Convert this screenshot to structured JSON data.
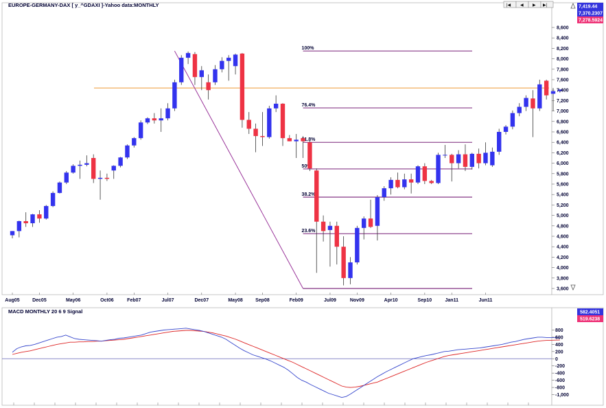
{
  "colors": {
    "up": "#3333ee",
    "down": "#ee3344",
    "wick": "#333333",
    "fib_line": "#660066",
    "horizontal_line": "#ee9933",
    "trend_line": "#993399",
    "macd_line": "#3344cc",
    "signal_line": "#dd2222",
    "zero_line": "#6666bb",
    "badge_blue": "#3333dd",
    "badge_pink": "#ee3377"
  },
  "nav_icons": [
    "first-icon",
    "previous-icon",
    "next-icon",
    "last-icon"
  ],
  "chart_data": [
    {
      "type": "candlestick",
      "title": "EUROPE-GERMANY-DAX [ y_^GDAXI ]-Yahoo data:MONTHLY",
      "period": "monthly",
      "ylim": [
        3600,
        8600
      ],
      "y_ticks": [
        3600,
        3800,
        4000,
        4200,
        4400,
        4600,
        4800,
        5000,
        5200,
        5400,
        5600,
        5800,
        6000,
        6200,
        6400,
        6600,
        6800,
        7000,
        7200,
        7400,
        7600,
        7800,
        8000,
        8200,
        8400,
        8600
      ],
      "x_tick_labels": [
        "Aug05",
        "Dec05",
        "May06",
        "Oct06",
        "Feb07",
        "Jul07",
        "Dec07",
        "May08",
        "Sep08",
        "Feb09",
        "Jul09",
        "Nov09",
        "Apr10",
        "Sep10",
        "Jan11",
        "Jun11"
      ],
      "x_tick_index": [
        0,
        4,
        9,
        14,
        18,
        23,
        28,
        33,
        37,
        42,
        47,
        51,
        56,
        61,
        65,
        70
      ],
      "value_labels": [
        "7,419.44",
        "7,370.2307",
        "7,278.5924"
      ],
      "candles": [
        {
          "date": "Jul05",
          "o": 4620,
          "h": 4700,
          "l": 4560,
          "c": 4700
        },
        {
          "date": "Aug05",
          "o": 4700,
          "h": 4900,
          "l": 4580,
          "c": 4890
        },
        {
          "date": "Sep05",
          "o": 4890,
          "h": 5060,
          "l": 4780,
          "c": 4850
        },
        {
          "date": "Oct05",
          "o": 4850,
          "h": 5030,
          "l": 4780,
          "c": 5020
        },
        {
          "date": "Nov05",
          "o": 5020,
          "h": 5100,
          "l": 4860,
          "c": 4940
        },
        {
          "date": "Dec05",
          "o": 4940,
          "h": 5200,
          "l": 4920,
          "c": 5180
        },
        {
          "date": "Jan06",
          "o": 5180,
          "h": 5460,
          "l": 5160,
          "c": 5430
        },
        {
          "date": "Feb06",
          "o": 5430,
          "h": 5650,
          "l": 5420,
          "c": 5630
        },
        {
          "date": "Mar06",
          "o": 5630,
          "h": 5850,
          "l": 5600,
          "c": 5820
        },
        {
          "date": "Apr06",
          "o": 5820,
          "h": 5980,
          "l": 5800,
          "c": 5950
        },
        {
          "date": "May06",
          "o": 5950,
          "h": 6050,
          "l": 5700,
          "c": 5970
        },
        {
          "date": "Jun06",
          "o": 5970,
          "h": 6150,
          "l": 5940,
          "c": 6000
        },
        {
          "date": "Jul06",
          "o": 6100,
          "h": 6170,
          "l": 5620,
          "c": 5700
        },
        {
          "date": "Aug06",
          "o": 5700,
          "h": 5860,
          "l": 5300,
          "c": 5720
        },
        {
          "date": "Sep06",
          "o": 5720,
          "h": 5800,
          "l": 5660,
          "c": 5700
        },
        {
          "date": "Oct06",
          "o": 5860,
          "h": 5960,
          "l": 5700,
          "c": 5950
        },
        {
          "date": "Nov06",
          "o": 5950,
          "h": 6120,
          "l": 5920,
          "c": 6110
        },
        {
          "date": "Dec06",
          "o": 6110,
          "h": 6360,
          "l": 6080,
          "c": 6340
        },
        {
          "date": "Jan07",
          "o": 6340,
          "h": 6500,
          "l": 6300,
          "c": 6480
        },
        {
          "date": "Feb07",
          "o": 6480,
          "h": 6820,
          "l": 6450,
          "c": 6780
        },
        {
          "date": "Mar07",
          "o": 6780,
          "h": 6880,
          "l": 6750,
          "c": 6860
        },
        {
          "date": "Apr07",
          "o": 6860,
          "h": 6960,
          "l": 6760,
          "c": 6820
        },
        {
          "date": "May07",
          "o": 6820,
          "h": 7050,
          "l": 6600,
          "c": 6860
        },
        {
          "date": "Jun07",
          "o": 6860,
          "h": 7150,
          "l": 6820,
          "c": 7050
        },
        {
          "date": "Jul07",
          "o": 7050,
          "h": 7600,
          "l": 7000,
          "c": 7550
        },
        {
          "date": "Aug07",
          "o": 7550,
          "h": 8070,
          "l": 7500,
          "c": 8020
        },
        {
          "date": "Sep07",
          "o": 8020,
          "h": 8140,
          "l": 7900,
          "c": 8110
        },
        {
          "date": "Oct07",
          "o": 8090,
          "h": 8130,
          "l": 7500,
          "c": 7650
        },
        {
          "date": "Nov07",
          "o": 7650,
          "h": 7860,
          "l": 7400,
          "c": 7780
        },
        {
          "date": "Dec07",
          "o": 7550,
          "h": 7700,
          "l": 7220,
          "c": 7400
        },
        {
          "date": "Jan08",
          "o": 7550,
          "h": 7880,
          "l": 7500,
          "c": 7800
        },
        {
          "date": "Feb08",
          "o": 7800,
          "h": 8030,
          "l": 7740,
          "c": 7960
        },
        {
          "date": "Mar08",
          "o": 7960,
          "h": 8070,
          "l": 7580,
          "c": 8020
        },
        {
          "date": "Apr08",
          "o": 7860,
          "h": 8100,
          "l": 7700,
          "c": 8080
        },
        {
          "date": "May08",
          "o": 8100,
          "h": 8110,
          "l": 6680,
          "c": 6830
        },
        {
          "date": "Jun08",
          "o": 6830,
          "h": 6980,
          "l": 6560,
          "c": 6660
        },
        {
          "date": "Jul08",
          "o": 6660,
          "h": 6760,
          "l": 6210,
          "c": 6520
        },
        {
          "date": "Aug08",
          "o": 6520,
          "h": 6980,
          "l": 6330,
          "c": 6500
        },
        {
          "date": "Sep08",
          "o": 6500,
          "h": 7100,
          "l": 6470,
          "c": 7050
        },
        {
          "date": "Oct08",
          "o": 7050,
          "h": 7300,
          "l": 6980,
          "c": 7140
        },
        {
          "date": "Nov08",
          "o": 7140,
          "h": 7150,
          "l": 6330,
          "c": 6480
        },
        {
          "date": "Dec08",
          "o": 6480,
          "h": 6540,
          "l": 6420,
          "c": 6420
        },
        {
          "date": "Jan09",
          "o": 6420,
          "h": 6560,
          "l": 6100,
          "c": 6450
        },
        {
          "date": "Feb09",
          "o": 6480,
          "h": 6520,
          "l": 6100,
          "c": 6420
        },
        {
          "date": "Mar09",
          "o": 6400,
          "h": 6430,
          "l": 5850,
          "c": 5900
        },
        {
          "date": "Apr09",
          "o": 5860,
          "h": 5900,
          "l": 3900,
          "c": 4880
        },
        {
          "date": "May09",
          "o": 4880,
          "h": 5000,
          "l": 4500,
          "c": 4700
        },
        {
          "date": "Jun09",
          "o": 4720,
          "h": 4880,
          "l": 4020,
          "c": 4800
        },
        {
          "date": "Jul09",
          "o": 4800,
          "h": 4880,
          "l": 4060,
          "c": 4400
        },
        {
          "date": "Aug09",
          "o": 4400,
          "h": 4600,
          "l": 3660,
          "c": 3800
        },
        {
          "date": "Sep09",
          "o": 3800,
          "h": 4200,
          "l": 3680,
          "c": 4100
        },
        {
          "date": "Oct09",
          "o": 4100,
          "h": 4800,
          "l": 4060,
          "c": 4760
        },
        {
          "date": "Nov09",
          "o": 4760,
          "h": 4980,
          "l": 4540,
          "c": 4940
        },
        {
          "date": "Dec09",
          "o": 4940,
          "h": 5300,
          "l": 4760,
          "c": 4780
        },
        {
          "date": "Jan10",
          "o": 4800,
          "h": 5390,
          "l": 4520,
          "c": 5350
        },
        {
          "date": "Feb10",
          "o": 5350,
          "h": 5560,
          "l": 5280,
          "c": 5520
        },
        {
          "date": "Mar10",
          "o": 5520,
          "h": 5730,
          "l": 5400,
          "c": 5680
        },
        {
          "date": "Apr10",
          "o": 5680,
          "h": 5820,
          "l": 5520,
          "c": 5540
        },
        {
          "date": "May10",
          "o": 5540,
          "h": 5800,
          "l": 5500,
          "c": 5690
        },
        {
          "date": "Jun10",
          "o": 5690,
          "h": 5800,
          "l": 5420,
          "c": 5630
        },
        {
          "date": "Jul10",
          "o": 5630,
          "h": 5960,
          "l": 5600,
          "c": 5940
        },
        {
          "date": "Aug10",
          "o": 5940,
          "h": 6000,
          "l": 5600,
          "c": 5660
        },
        {
          "date": "Sep10",
          "o": 5660,
          "h": 5680,
          "l": 5600,
          "c": 5620
        },
        {
          "date": "Oct10",
          "o": 5620,
          "h": 6200,
          "l": 5600,
          "c": 6160
        },
        {
          "date": "Nov10",
          "o": 6160,
          "h": 6350,
          "l": 6100,
          "c": 6160
        },
        {
          "date": "Dec10",
          "o": 6160,
          "h": 6180,
          "l": 5650,
          "c": 6000
        },
        {
          "date": "Jan11",
          "o": 6000,
          "h": 6250,
          "l": 5900,
          "c": 6170
        },
        {
          "date": "Feb11",
          "o": 6170,
          "h": 6360,
          "l": 5850,
          "c": 5930
        },
        {
          "date": "Mar11",
          "o": 5930,
          "h": 6200,
          "l": 5880,
          "c": 6180
        },
        {
          "date": "Apr11",
          "o": 6180,
          "h": 6280,
          "l": 5900,
          "c": 6000
        },
        {
          "date": "May11",
          "o": 6000,
          "h": 6400,
          "l": 5960,
          "c": 6200
        },
        {
          "date": "Jun11",
          "o": 5960,
          "h": 6300,
          "l": 5930,
          "c": 6220
        },
        {
          "date": "Jul11",
          "o": 6220,
          "h": 6660,
          "l": 6160,
          "c": 6600
        },
        {
          "date": "Aug11",
          "o": 6600,
          "h": 6730,
          "l": 6550,
          "c": 6700
        },
        {
          "date": "Sep11",
          "o": 6700,
          "h": 7010,
          "l": 6650,
          "c": 6960
        },
        {
          "date": "Oct11",
          "o": 6960,
          "h": 7150,
          "l": 6900,
          "c": 7080
        },
        {
          "date": "Nov11",
          "o": 7080,
          "h": 7300,
          "l": 7000,
          "c": 7250
        },
        {
          "date": "Dec11",
          "o": 7240,
          "h": 7400,
          "l": 6500,
          "c": 7050
        },
        {
          "date": "Jan12",
          "o": 7050,
          "h": 7600,
          "l": 7000,
          "c": 7510
        },
        {
          "date": "Feb12",
          "o": 7580,
          "h": 7600,
          "l": 7220,
          "c": 7300
        },
        {
          "date": "Mar12",
          "o": 7330,
          "h": 7440,
          "l": 7000,
          "c": 7380
        },
        {
          "date": "Apr12",
          "o": 7380,
          "h": 7420,
          "l": 7360,
          "c": 7410
        }
      ],
      "horizontal_line": 7440,
      "fibonacci": {
        "levels": [
          {
            "label": "100%",
            "value": 8150
          },
          {
            "label": "76.4%",
            "value": 7060
          },
          {
            "label": "61.8%",
            "value": 6400
          },
          {
            "label": "50%",
            "value": 5890
          },
          {
            "label": "38.2%",
            "value": 5350
          },
          {
            "label": "23.6%",
            "value": 4650
          },
          {
            "label": "",
            "value": 3600
          }
        ]
      },
      "trend_line": {
        "from": {
          "date": "Jul07",
          "value": 8150
        },
        "to": {
          "date": "Feb09",
          "value": 3600
        }
      }
    },
    {
      "type": "line",
      "title": "MACD MONTHLY 20 6 9 Signal",
      "ylim": [
        -1200,
        1000
      ],
      "y_ticks": [
        800,
        600,
        400,
        200,
        0,
        -200,
        -400,
        -600,
        -800,
        -1000
      ],
      "y_tick_labels": [
        "800",
        "600",
        "400",
        "200",
        "0",
        "-200",
        "-400",
        "-600",
        "-800",
        "-1,000"
      ],
      "value_labels": [
        "582.4051",
        "519.6238"
      ],
      "series": [
        {
          "values": [
            180,
            280,
            330,
            360,
            370,
            400,
            440,
            480,
            520,
            560,
            600,
            620,
            660,
            610,
            560,
            540,
            530,
            520,
            510,
            500,
            490,
            510,
            530,
            540,
            570,
            580,
            600,
            620,
            640,
            660,
            700,
            740,
            760,
            780,
            800,
            810,
            820,
            830,
            840,
            850,
            830,
            810,
            790,
            760,
            720,
            680,
            640,
            600,
            540,
            460,
            380,
            300,
            230,
            170,
            110,
            70,
            30,
            -10,
            -60,
            -120,
            -180,
            -240,
            -320,
            -420,
            -520,
            -600,
            -650,
            -720,
            -780,
            -840,
            -900,
            -960,
            -1000,
            -1040,
            -1080,
            -1050,
            -980,
            -900,
            -820,
            -740,
            -660,
            -580,
            -500,
            -430,
            -360,
            -300,
            -240,
            -180,
            -120,
            -60,
            0,
            30,
            60,
            90,
            110,
            140,
            170,
            200,
            210,
            230,
            250,
            260,
            270,
            280,
            290,
            300,
            320,
            340,
            360,
            380,
            400,
            430,
            460,
            480,
            510,
            540,
            560,
            580,
            600,
            600,
            590,
            590,
            585,
            582
          ]
        },
        {
          "values": [
            120,
            150,
            180,
            200,
            220,
            250,
            280,
            310,
            340,
            370,
            400,
            420,
            440,
            460,
            460,
            470,
            470,
            480,
            480,
            490,
            490,
            500,
            510,
            520,
            530,
            540,
            560,
            580,
            600,
            620,
            640,
            660,
            680,
            700,
            720,
            740,
            760,
            770,
            780,
            790,
            790,
            780,
            770,
            760,
            740,
            720,
            690,
            660,
            630,
            590,
            550,
            500,
            450,
            400,
            350,
            300,
            250,
            200,
            150,
            100,
            50,
            0,
            -50,
            -100,
            -160,
            -220,
            -280,
            -340,
            -400,
            -460,
            -520,
            -580,
            -640,
            -700,
            -760,
            -790,
            -800,
            -790,
            -770,
            -740,
            -710,
            -680,
            -650,
            -600,
            -550,
            -500,
            -450,
            -400,
            -350,
            -300,
            -250,
            -200,
            -150,
            -100,
            -60,
            -20,
            20,
            60,
            90,
            110,
            130,
            150,
            170,
            190,
            210,
            230,
            250,
            270,
            290,
            310,
            330,
            350,
            370,
            390,
            410,
            430,
            450,
            470,
            490,
            500,
            510,
            515,
            518,
            519
          ]
        }
      ]
    }
  ]
}
